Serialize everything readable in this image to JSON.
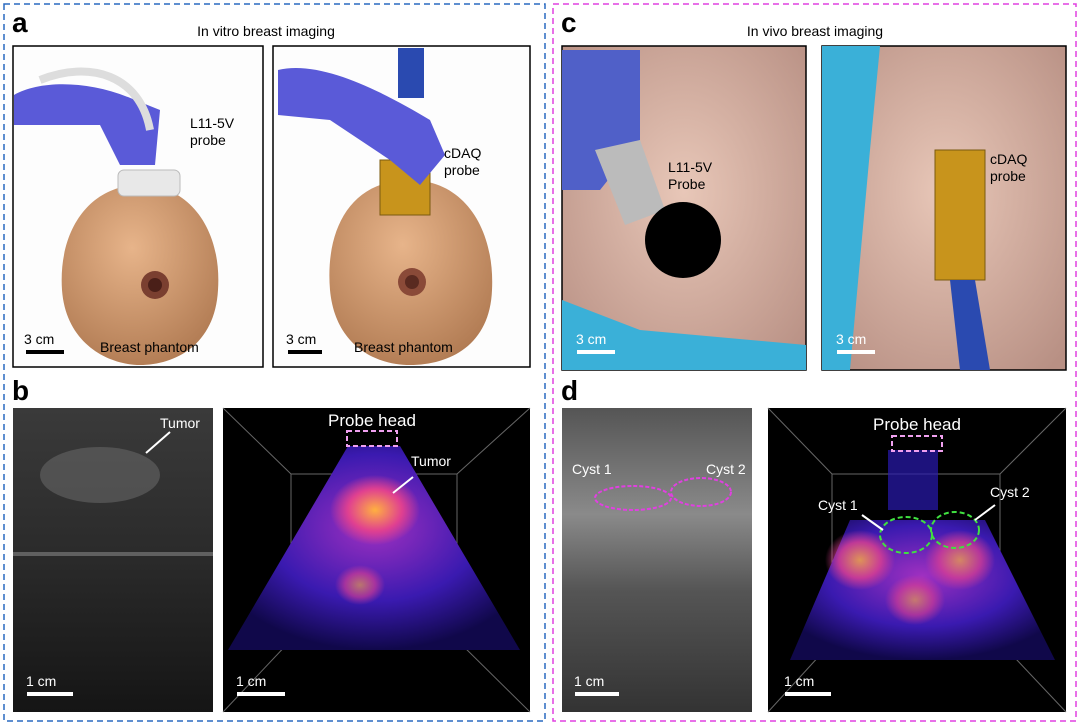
{
  "panel_a": {
    "letter": "a",
    "title": "In vitro breast imaging",
    "left": {
      "probe_label": [
        "L11-5V",
        "probe"
      ],
      "caption": "Breast phantom",
      "scale": "3 cm"
    },
    "right": {
      "probe_label": [
        "cDAQ",
        "probe"
      ],
      "caption": "Breast phantom",
      "scale": "3 cm"
    }
  },
  "panel_b": {
    "letter": "b",
    "left": {
      "annotation": "Tumor",
      "scale": "1 cm"
    },
    "right": {
      "probe_label": "Probe head",
      "annotation": "Tumor",
      "scale": "1 cm"
    }
  },
  "panel_c": {
    "letter": "c",
    "title": "In vivo breast imaging",
    "left": {
      "probe_label": [
        "L11-5V",
        "Probe"
      ],
      "scale": "3 cm"
    },
    "right": {
      "probe_label": [
        "cDAQ",
        "probe"
      ],
      "scale": "3 cm"
    }
  },
  "panel_d": {
    "letter": "d",
    "left": {
      "annotations": [
        "Cyst 1",
        "Cyst 2"
      ],
      "scale": "1 cm"
    },
    "right": {
      "probe_label": "Probe head",
      "annotations": [
        "Cyst 1",
        "Cyst 2"
      ],
      "scale": "1 cm"
    }
  }
}
